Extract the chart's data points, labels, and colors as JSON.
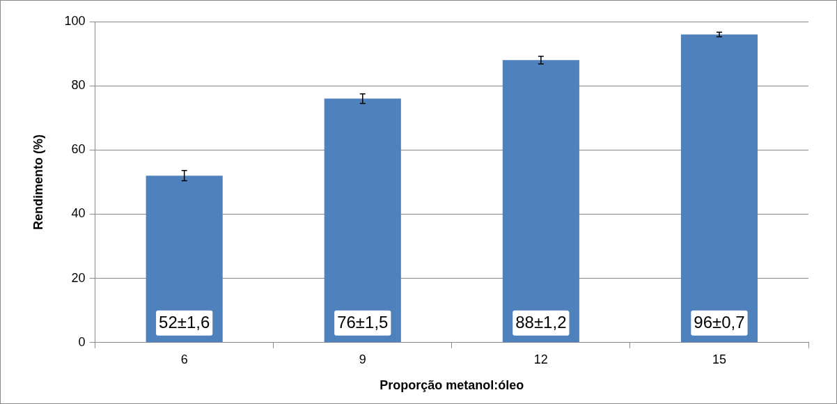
{
  "chart_data": {
    "type": "bar",
    "xlabel": "Proporção metanol:óleo",
    "ylabel": "Rendimento (%)",
    "categories": [
      "6",
      "9",
      "12",
      "15"
    ],
    "values": [
      52,
      76,
      88,
      96
    ],
    "errors": [
      1.6,
      1.5,
      1.2,
      0.7
    ],
    "value_labels": [
      "52±1,6",
      "76±1,5",
      "88±1,2",
      "96±0,7"
    ],
    "color": "#4f81bd",
    "ylim": [
      0,
      100
    ],
    "yticks": [
      0,
      20,
      40,
      60,
      80,
      100
    ],
    "grid": "y"
  }
}
